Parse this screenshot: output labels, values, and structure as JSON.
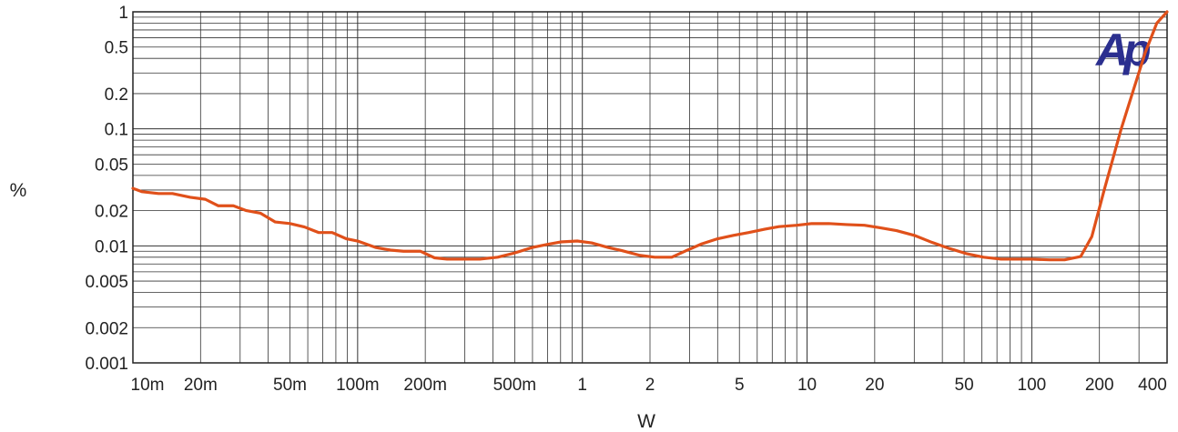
{
  "chart_data": {
    "type": "line",
    "xscale": "log",
    "yscale": "log",
    "xlabel": "W",
    "ylabel": "%",
    "xlim": [
      0.01,
      400
    ],
    "ylim": [
      0.001,
      1
    ],
    "x_ticks": [
      {
        "value": 0.01,
        "label": "10m"
      },
      {
        "value": 0.02,
        "label": "20m"
      },
      {
        "value": 0.05,
        "label": "50m"
      },
      {
        "value": 0.1,
        "label": "100m"
      },
      {
        "value": 0.2,
        "label": "200m"
      },
      {
        "value": 0.5,
        "label": "500m"
      },
      {
        "value": 1,
        "label": "1"
      },
      {
        "value": 2,
        "label": "2"
      },
      {
        "value": 5,
        "label": "5"
      },
      {
        "value": 10,
        "label": "10"
      },
      {
        "value": 20,
        "label": "20"
      },
      {
        "value": 50,
        "label": "50"
      },
      {
        "value": 100,
        "label": "100"
      },
      {
        "value": 200,
        "label": "200"
      },
      {
        "value": 400,
        "label": "400"
      }
    ],
    "y_ticks": [
      {
        "value": 1,
        "label": "1"
      },
      {
        "value": 0.5,
        "label": "0.5"
      },
      {
        "value": 0.2,
        "label": "0.2"
      },
      {
        "value": 0.1,
        "label": "0.1"
      },
      {
        "value": 0.05,
        "label": "0.05"
      },
      {
        "value": 0.02,
        "label": "0.02"
      },
      {
        "value": 0.01,
        "label": "0.01"
      },
      {
        "value": 0.005,
        "label": "0.005"
      },
      {
        "value": 0.002,
        "label": "0.002"
      },
      {
        "value": 0.001,
        "label": "0.001"
      }
    ],
    "grid": true,
    "line_color": "#e0501a",
    "series": [
      {
        "x": [
          0.01,
          0.011,
          0.013,
          0.015,
          0.018,
          0.021,
          0.024,
          0.028,
          0.032,
          0.037,
          0.043,
          0.05,
          0.058,
          0.067,
          0.077,
          0.089,
          0.1,
          0.12,
          0.14,
          0.16,
          0.19,
          0.22,
          0.25,
          0.3,
          0.35,
          0.42,
          0.5,
          0.6,
          0.7,
          0.8,
          0.95,
          1.1,
          1.3,
          1.5,
          1.8,
          2.1,
          2.5,
          2.9,
          3.4,
          4.0,
          4.7,
          5.5,
          6.5,
          7.5,
          9.0,
          10.5,
          12.5,
          15,
          18,
          21,
          25,
          30,
          36,
          43,
          51,
          61,
          73,
          88,
          100,
          120,
          140,
          165,
          185,
          210,
          250,
          280,
          320,
          360,
          400
        ],
        "y": [
          0.031,
          0.029,
          0.028,
          0.028,
          0.026,
          0.025,
          0.022,
          0.022,
          0.02,
          0.019,
          0.016,
          0.0155,
          0.0145,
          0.013,
          0.013,
          0.0115,
          0.011,
          0.0097,
          0.0092,
          0.009,
          0.009,
          0.0079,
          0.0077,
          0.0077,
          0.0077,
          0.008,
          0.0087,
          0.0097,
          0.0103,
          0.0108,
          0.011,
          0.0106,
          0.0097,
          0.0091,
          0.0083,
          0.008,
          0.008,
          0.0091,
          0.0104,
          0.0115,
          0.0123,
          0.013,
          0.0139,
          0.0146,
          0.015,
          0.0155,
          0.0155,
          0.0152,
          0.015,
          0.0143,
          0.0135,
          0.0123,
          0.0107,
          0.0095,
          0.0086,
          0.008,
          0.0077,
          0.0077,
          0.0077,
          0.0076,
          0.0076,
          0.0081,
          0.012,
          0.03,
          0.1,
          0.2,
          0.45,
          0.8,
          1.0
        ]
      }
    ]
  },
  "logo": {
    "text": "Ap",
    "color": "#2b2f8f"
  }
}
